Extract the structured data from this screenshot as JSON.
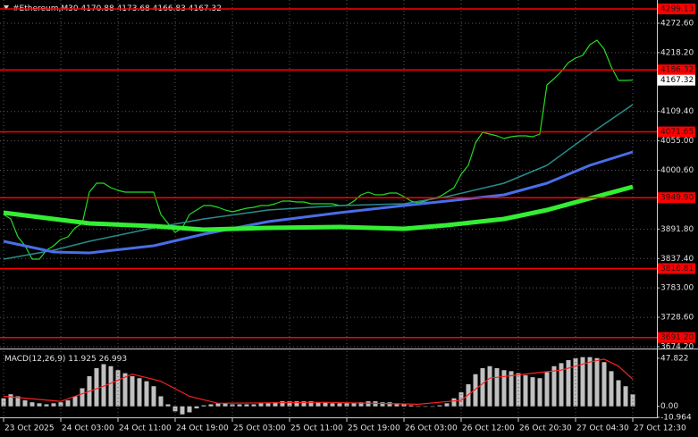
{
  "chart_data": [
    {
      "type": "line",
      "symbol": "#Ethereum,M30",
      "ohlc": [
        4170.88,
        4173.68,
        4166.83,
        4167.32
      ],
      "current_price": 4167.32,
      "xlim": [
        -0.5,
        91.375
      ],
      "ylim": [
        3672.5,
        4315.6
      ],
      "grid": true,
      "xticks": [
        {
          "value": 0,
          "label": "23 Oct 2025"
        },
        {
          "value": 8,
          "label": "24 Oct 03:00"
        },
        {
          "value": 16,
          "label": "24 Oct 11:00"
        },
        {
          "value": 24,
          "label": "24 Oct 19:00"
        },
        {
          "value": 32,
          "label": "25 Oct 03:00"
        },
        {
          "value": 40,
          "label": "25 Oct 11:00"
        },
        {
          "value": 48,
          "label": "25 Oct 19:00"
        },
        {
          "value": 56,
          "label": "26 Oct 03:00"
        },
        {
          "value": 64,
          "label": "26 Oct 12:00"
        },
        {
          "value": 72,
          "label": "26 Oct 20:30"
        },
        {
          "value": 80,
          "label": "27 Oct 04:30"
        },
        {
          "value": 88,
          "label": "27 Oct 12:30"
        }
      ],
      "yticks": [
        {
          "value": 4272.6,
          "label": "4272.60"
        },
        {
          "value": 4218.2,
          "label": "4218.20"
        },
        {
          "value": 4109.4,
          "label": "4109.40"
        },
        {
          "value": 4055,
          "label": "4055.00"
        },
        {
          "value": 4000.6,
          "label": "4000.60"
        },
        {
          "value": 3891.8,
          "label": "3891.80"
        },
        {
          "value": 3837.4,
          "label": "3837.40"
        },
        {
          "value": 3783,
          "label": "3783.00"
        },
        {
          "value": 3728.6,
          "label": "3728.60"
        },
        {
          "value": 3674.2,
          "label": "3674.20"
        }
      ],
      "levels": [
        4299.13,
        4186.32,
        4071.65,
        {
          "value": 3949.9,
          "label": "3949.90"
        },
        3818.81,
        {
          "value": 3691.2,
          "label": "3691.20"
        }
      ],
      "level_color": "#ff0000",
      "series": [
        {
          "color": "#22dd22",
          "width": 1.2,
          "x": [
            0,
            1,
            2,
            3,
            4,
            5,
            6,
            7,
            8,
            9,
            10,
            11,
            12,
            13,
            14,
            15,
            16,
            17,
            18,
            19,
            20,
            21,
            22,
            23,
            24,
            25,
            26,
            27,
            28,
            29,
            30,
            31,
            32,
            33,
            34,
            35,
            36,
            37,
            38,
            39,
            40,
            41,
            42,
            43,
            44,
            45,
            46,
            47,
            48,
            49,
            50,
            51,
            52,
            53,
            54,
            55,
            56,
            57,
            58,
            59,
            60,
            61,
            62,
            63,
            64,
            65,
            66,
            67,
            68,
            69,
            70,
            71,
            72,
            73,
            74,
            75,
            76,
            77,
            78,
            79,
            80,
            81,
            82,
            83,
            84,
            85,
            86,
            87,
            88
          ],
          "values": [
            3918.9,
            3910.6,
            3877.5,
            3861.0,
            3836.2,
            3836.2,
            3852.7,
            3861.0,
            3872.6,
            3877.5,
            3894.1,
            3902.3,
            3960.2,
            3976.7,
            3976.7,
            3968.4,
            3963.5,
            3960.2,
            3960.2,
            3960.2,
            3960.2,
            3960.2,
            3918.9,
            3902.3,
            3885.8,
            3894.1,
            3918.9,
            3927.1,
            3935.4,
            3935.4,
            3932.1,
            3927.1,
            3923.8,
            3927.1,
            3930.4,
            3932.1,
            3935.4,
            3935.4,
            3938.7,
            3943.6,
            3943.6,
            3942.0,
            3942.0,
            3938.7,
            3938.7,
            3938.7,
            3938.7,
            3935.4,
            3935.4,
            3943.6,
            3955.2,
            3960.2,
            3955.2,
            3955.2,
            3958.5,
            3958.5,
            3951.9,
            3943.6,
            3940.3,
            3943.6,
            3948.6,
            3951.9,
            3960.2,
            3968.4,
            3993.2,
            4009.8,
            4051.1,
            4070.9,
            4067.6,
            4064.3,
            4059.4,
            4062.7,
            4064.3,
            4064.3,
            4062.7,
            4067.6,
            4158.5,
            4170.1,
            4183.3,
            4199.9,
            4208.1,
            4213.1,
            4232.9,
            4241.2,
            4224.7,
            4191.6,
            4166.8,
            4166.8,
            4167.32
          ]
        },
        {
          "color": "#2a8c8c",
          "width": 1.5,
          "x": [
            0,
            7,
            12,
            21,
            28,
            37,
            47,
            56,
            62,
            70,
            76,
            82,
            88
          ],
          "values": [
            3836.2,
            3852.7,
            3869.3,
            3894.1,
            3910.6,
            3927.1,
            3935.4,
            3938.7,
            3951.9,
            3976.7,
            4009.8,
            4067.6,
            4122.2
          ]
        },
        {
          "color": "#4a6ee8",
          "width": 3,
          "x": [
            0,
            7,
            12,
            21,
            28,
            37,
            47,
            56,
            62,
            70,
            76,
            82,
            88
          ],
          "values": [
            3869.3,
            3849.4,
            3847.8,
            3861.0,
            3882.5,
            3905.6,
            3922.2,
            3935.4,
            3943.6,
            3955.2,
            3976.7,
            4009.8,
            4034.6
          ]
        },
        {
          "color": "#33ee33",
          "width": 5,
          "x": [
            0,
            7,
            12,
            21,
            28,
            37,
            47,
            56,
            62,
            70,
            76,
            82,
            88
          ],
          "values": [
            3922.2,
            3910.6,
            3902.3,
            3897.4,
            3890.8,
            3894.1,
            3895.7,
            3892.4,
            3899.0,
            3910.6,
            3927.1,
            3948.6,
            3970.1
          ]
        }
      ]
    },
    {
      "type": "macd",
      "label": "MACD(12,26,9)",
      "xlim": [
        -0.5,
        91.375
      ],
      "ylim": [
        -10.964,
        54.9
      ],
      "yticks": [
        47.822,
        {
          "value": 0,
          "label": "0.00"
        },
        -10.964
      ],
      "series": [
        {
          "kind": "histogram",
          "color": "#c0c0c0",
          "values": [
            8,
            12,
            10,
            6,
            4,
            3,
            2,
            3,
            4,
            6,
            10,
            18,
            30,
            38,
            42,
            40,
            36,
            33,
            30,
            28,
            25,
            20,
            10,
            2,
            -5,
            -8,
            -6,
            -2,
            1,
            2,
            3,
            3,
            2,
            2,
            2,
            2,
            3,
            3,
            4,
            5,
            5,
            5,
            5,
            5,
            4,
            4,
            3,
            3,
            3,
            3,
            4,
            5,
            5,
            4,
            4,
            3,
            2,
            1,
            0,
            0,
            0,
            1,
            3,
            8,
            14,
            22,
            32,
            38,
            40,
            38,
            36,
            35,
            33,
            31,
            29,
            28,
            34,
            40,
            43,
            46,
            48,
            49,
            49,
            48,
            44,
            35,
            26,
            20,
            11.925
          ]
        },
        {
          "kind": "signal",
          "color": "#ff2020",
          "x": [
            0,
            8,
            14,
            18,
            22,
            26,
            30,
            45,
            58,
            64,
            68,
            74,
            78,
            82,
            84,
            86,
            88
          ],
          "values": [
            10,
            5,
            20,
            32,
            25,
            10,
            3,
            4,
            2,
            6,
            28,
            33,
            36,
            44,
            47,
            40,
            26.993
          ]
        }
      ]
    }
  ]
}
